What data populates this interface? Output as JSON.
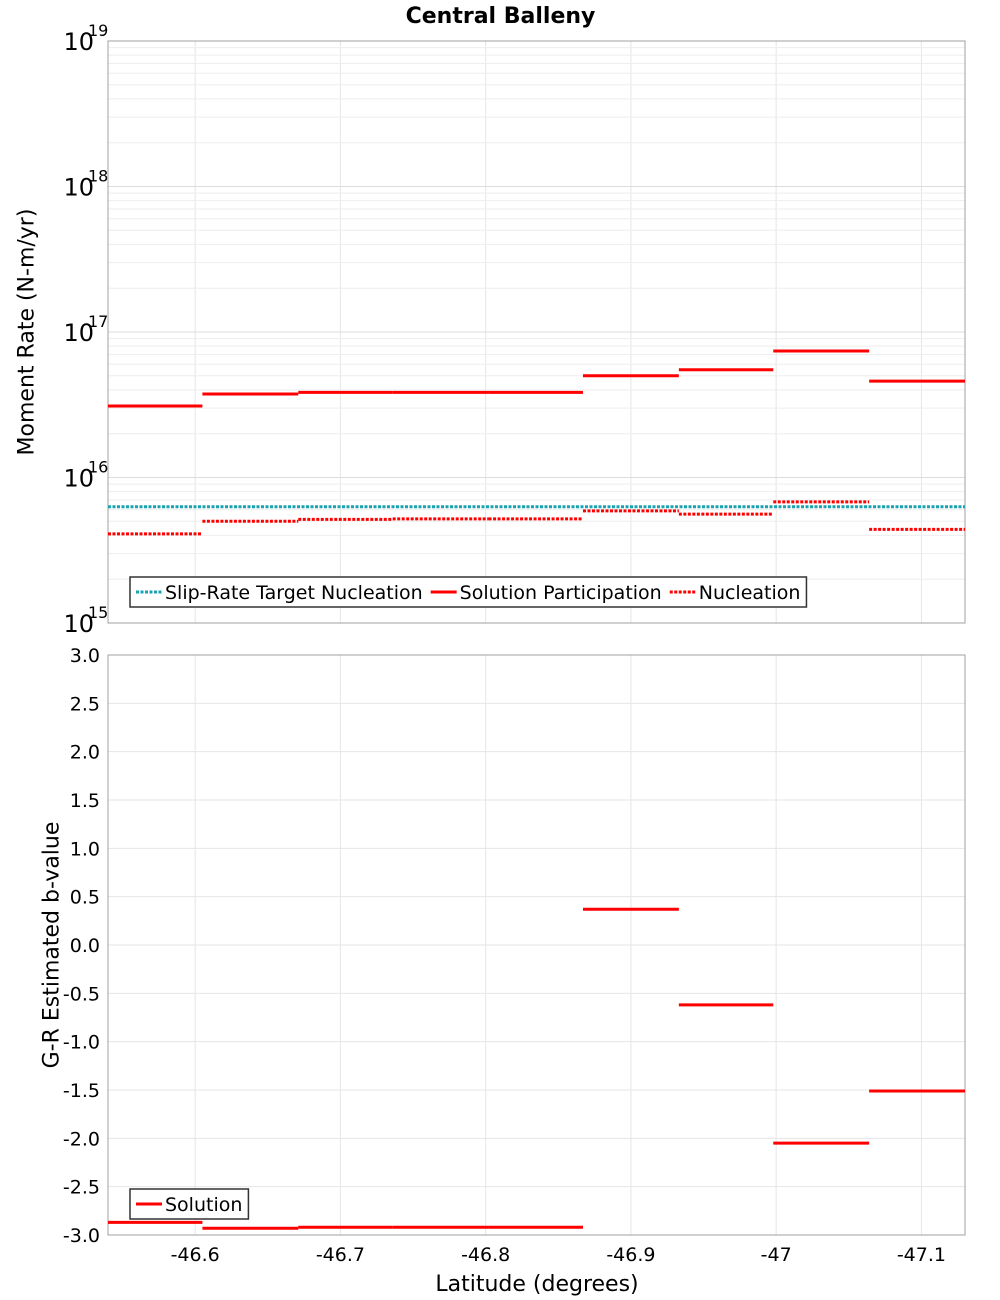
{
  "chart_data": [
    {
      "type": "line",
      "title": "Central Balleny",
      "xlabel": "",
      "ylabel": "Moment Rate (N-m/yr)",
      "yscale": "log",
      "ylim": [
        1000000000000000.0,
        1e+19
      ],
      "xlim": [
        -46.54,
        -47.13
      ],
      "x_ticks": [
        -46.6,
        -46.7,
        -46.8,
        -46.9,
        -47,
        -47.1
      ],
      "x_tick_labels": [
        "-46.6",
        "-46.7",
        "-46.8",
        "-46.9",
        "-47",
        "-47.1"
      ],
      "y_ticks": [
        1000000000000000.0,
        1e+16,
        1e+17,
        1e+18,
        1e+19
      ],
      "y_tick_labels": [
        {
          "base": "10",
          "exp": "15"
        },
        {
          "base": "10",
          "exp": "16"
        },
        {
          "base": "10",
          "exp": "17"
        },
        {
          "base": "10",
          "exp": "18"
        },
        {
          "base": "10",
          "exp": "19"
        }
      ],
      "grid": true,
      "legend": "bottom-left",
      "series": [
        {
          "name": "Slip-Rate Target Nucleation",
          "color": "#1aa3b3",
          "style": "dotted",
          "segments": [
            {
              "x0": -46.54,
              "x1": -47.13,
              "y": 6300000000000000.0
            }
          ]
        },
        {
          "name": "Solution Participation",
          "color": "#ff0000",
          "style": "solid",
          "segments": [
            {
              "x0": -46.54,
              "x1": -46.605,
              "y": 3.1e+16
            },
            {
              "x0": -46.605,
              "x1": -46.671,
              "y": 3.75e+16
            },
            {
              "x0": -46.671,
              "x1": -46.736,
              "y": 3.85e+16
            },
            {
              "x0": -46.736,
              "x1": -46.802,
              "y": 3.85e+16
            },
            {
              "x0": -46.802,
              "x1": -46.867,
              "y": 3.85e+16
            },
            {
              "x0": -46.867,
              "x1": -46.933,
              "y": 5e+16
            },
            {
              "x0": -46.933,
              "x1": -46.998,
              "y": 5.5e+16
            },
            {
              "x0": -46.998,
              "x1": -47.064,
              "y": 7.4e+16
            },
            {
              "x0": -47.064,
              "x1": -47.13,
              "y": 4.6e+16
            }
          ]
        },
        {
          "name": "Nucleation",
          "color": "#ff0000",
          "style": "dotted",
          "segments": [
            {
              "x0": -46.54,
              "x1": -46.605,
              "y": 4100000000000000.0
            },
            {
              "x0": -46.605,
              "x1": -46.671,
              "y": 5000000000000000.0
            },
            {
              "x0": -46.671,
              "x1": -46.736,
              "y": 5150000000000000.0
            },
            {
              "x0": -46.736,
              "x1": -46.802,
              "y": 5200000000000000.0
            },
            {
              "x0": -46.802,
              "x1": -46.867,
              "y": 5200000000000000.0
            },
            {
              "x0": -46.867,
              "x1": -46.933,
              "y": 5900000000000000.0
            },
            {
              "x0": -46.933,
              "x1": -46.998,
              "y": 5600000000000000.0
            },
            {
              "x0": -46.998,
              "x1": -47.064,
              "y": 6800000000000000.0
            },
            {
              "x0": -47.064,
              "x1": -47.13,
              "y": 4400000000000000.0
            }
          ]
        }
      ]
    },
    {
      "type": "line",
      "title": "",
      "xlabel": "Latitude (degrees)",
      "ylabel": "G-R Estimated b-value",
      "ylim": [
        -3.0,
        3.0
      ],
      "xlim": [
        -46.54,
        -47.13
      ],
      "x_ticks": [
        -46.6,
        -46.7,
        -46.8,
        -46.9,
        -47,
        -47.1
      ],
      "x_tick_labels": [
        "-46.6",
        "-46.7",
        "-46.8",
        "-46.9",
        "-47",
        "-47.1"
      ],
      "y_ticks": [
        -3.0,
        -2.5,
        -2.0,
        -1.5,
        -1.0,
        -0.5,
        0.0,
        0.5,
        1.0,
        1.5,
        2.0,
        2.5,
        3.0
      ],
      "y_tick_labels": [
        "-3.0",
        "-2.5",
        "-2.0",
        "-1.5",
        "-1.0",
        "-0.5",
        "0.0",
        "0.5",
        "1.0",
        "1.5",
        "2.0",
        "2.5",
        "3.0"
      ],
      "grid": true,
      "legend": "bottom-left",
      "series": [
        {
          "name": "Solution",
          "color": "#ff0000",
          "style": "solid",
          "segments": [
            {
              "x0": -46.54,
              "x1": -46.605,
              "y": -2.87
            },
            {
              "x0": -46.605,
              "x1": -46.671,
              "y": -2.93
            },
            {
              "x0": -46.671,
              "x1": -46.736,
              "y": -2.92
            },
            {
              "x0": -46.736,
              "x1": -46.802,
              "y": -2.92
            },
            {
              "x0": -46.802,
              "x1": -46.867,
              "y": -2.92
            },
            {
              "x0": -46.867,
              "x1": -46.933,
              "y": 0.37
            },
            {
              "x0": -46.933,
              "x1": -46.998,
              "y": -0.62
            },
            {
              "x0": -46.998,
              "x1": -47.064,
              "y": -2.05
            },
            {
              "x0": -47.064,
              "x1": -47.13,
              "y": -1.51
            }
          ]
        }
      ]
    }
  ]
}
